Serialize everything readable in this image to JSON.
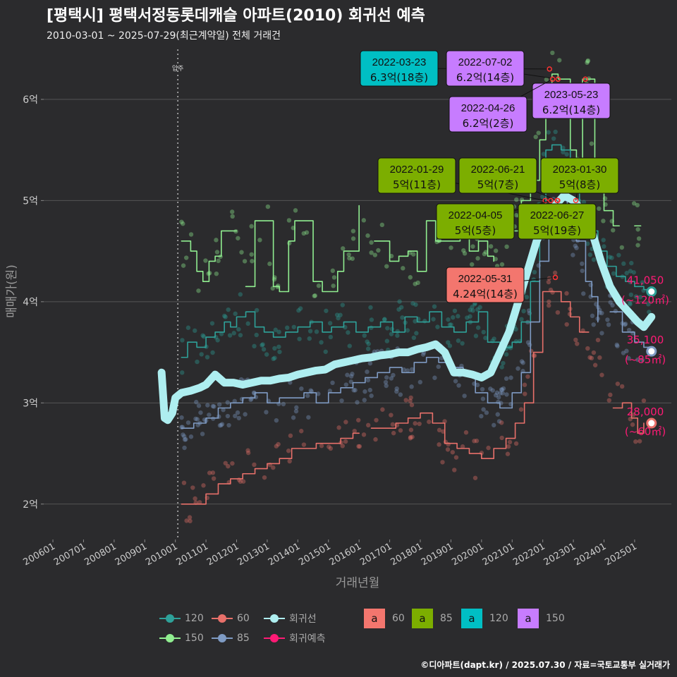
{
  "title": "[평택시] 평택서정동롯데캐슬 아파트(2010) 회귀선 예측",
  "subtitle": "2010-03-01 ~ 2025-07-29(최근계약일) 전체 거래건",
  "credit": "©디아파트(dapt.kr) / 2025.07.30 / 자료=국토교통부 실거래가",
  "chart_data": {
    "type": "line",
    "xlabel": "거래년월",
    "ylabel": "매매가(원)",
    "x_ticks": [
      "200601",
      "200701",
      "200801",
      "200901",
      "201001",
      "201101",
      "201201",
      "201301",
      "201401",
      "201501",
      "201601",
      "201701",
      "201801",
      "201901",
      "202001",
      "202101",
      "202201",
      "202301",
      "202401",
      "202501"
    ],
    "y_ticks": [
      {
        "v": 2,
        "label": "2억"
      },
      {
        "v": 3,
        "label": "3억"
      },
      {
        "v": 4,
        "label": "4억"
      },
      {
        "v": 5,
        "label": "5억"
      },
      {
        "v": 6,
        "label": "6억"
      }
    ],
    "ylim": [
      1.65,
      6.55
    ],
    "xlim": [
      2005.7,
      2026.2
    ],
    "vline": {
      "x": 2010.08,
      "label": "입주"
    },
    "series": [
      {
        "name": "150",
        "color": "#90ee90",
        "width": 1.6,
        "gaps": [
          2012.05,
          2016.2,
          2020.5,
          2024.6
        ],
        "x": [
          2010.2,
          2010.5,
          2010.7,
          2010.9,
          2011.1,
          2011.3,
          2011.5,
          2011.7,
          2011.9,
          2012.0,
          2012.3,
          2012.6,
          2013.0,
          2013.2,
          2013.4,
          2013.7,
          2013.9,
          2014.2,
          2014.5,
          2014.8,
          2015.0,
          2015.3,
          2015.5,
          2015.8,
          2016.0,
          2016.5,
          2016.8,
          2017.0,
          2017.3,
          2017.6,
          2017.9,
          2018.2,
          2018.5,
          2018.8,
          2019.0,
          2019.3,
          2019.6,
          2019.9,
          2020.2,
          2020.4,
          2020.8,
          2021.0,
          2021.3,
          2021.6,
          2021.9,
          2022.1,
          2022.3,
          2022.5,
          2022.7,
          2022.9,
          2023.1,
          2023.3,
          2023.5,
          2023.7,
          2024.0,
          2024.3,
          2024.5,
          2025.0,
          2025.2
        ],
        "y": [
          4.6,
          4.5,
          4.3,
          4.2,
          4.4,
          4.45,
          4.7,
          4.7,
          4.7,
          4.7,
          4.15,
          4.8,
          4.8,
          4.15,
          4.1,
          4.6,
          4.8,
          4.8,
          4.2,
          4.1,
          4.1,
          4.3,
          4.5,
          4.5,
          4.95,
          4.6,
          4.6,
          4.4,
          4.45,
          4.5,
          4.3,
          4.8,
          4.6,
          4.6,
          4.6,
          4.7,
          4.5,
          4.6,
          4.45,
          4.4,
          4.65,
          4.7,
          5.0,
          5.2,
          5.6,
          6.0,
          6.25,
          6.2,
          6.2,
          5.5,
          5.1,
          6.2,
          6.2,
          5.3,
          4.9,
          4.75,
          4.75,
          4.75,
          4.75
        ]
      },
      {
        "name": "120",
        "color": "#2ea199",
        "width": 1.6,
        "gaps": [],
        "x": [
          2010.2,
          2010.4,
          2010.7,
          2011.0,
          2011.3,
          2011.6,
          2011.8,
          2012.0,
          2012.3,
          2012.6,
          2012.9,
          2013.2,
          2013.6,
          2014.0,
          2014.4,
          2014.8,
          2015.1,
          2015.5,
          2015.9,
          2016.3,
          2016.7,
          2017.1,
          2017.5,
          2017.9,
          2018.3,
          2018.7,
          2019.1,
          2019.5,
          2019.9,
          2020.2,
          2020.6,
          2021.0,
          2021.3,
          2021.6,
          2021.9,
          2022.1,
          2022.3,
          2022.6,
          2022.9,
          2023.2,
          2023.5,
          2023.8,
          2024.1,
          2024.4,
          2024.7,
          2025.0,
          2025.3,
          2025.55
        ],
        "y": [
          3.45,
          3.6,
          3.55,
          3.65,
          3.7,
          3.8,
          3.75,
          3.85,
          3.9,
          3.75,
          3.7,
          3.65,
          3.7,
          3.75,
          3.8,
          3.7,
          3.75,
          3.8,
          3.7,
          3.75,
          3.8,
          3.7,
          3.85,
          3.8,
          3.9,
          3.75,
          3.7,
          3.8,
          3.9,
          3.6,
          3.55,
          3.6,
          3.8,
          4.2,
          4.8,
          5.5,
          5.55,
          5.5,
          5.2,
          4.9,
          4.7,
          4.5,
          4.35,
          4.25,
          4.2,
          4.15,
          4.12,
          4.1
        ]
      },
      {
        "name": "85",
        "color": "#7f9bc4",
        "width": 1.6,
        "gaps": [
          2023.9
        ],
        "x": [
          2010.2,
          2010.6,
          2011.0,
          2011.4,
          2011.8,
          2012.2,
          2012.6,
          2013.0,
          2013.4,
          2013.8,
          2014.2,
          2014.6,
          2015.0,
          2015.4,
          2015.8,
          2016.2,
          2016.6,
          2017.0,
          2017.4,
          2017.8,
          2018.2,
          2018.6,
          2019.0,
          2019.4,
          2019.8,
          2020.2,
          2020.6,
          2021.0,
          2021.3,
          2021.6,
          2021.9,
          2022.2,
          2022.5,
          2022.8,
          2023.1,
          2023.4,
          2023.6,
          2023.8,
          2024.2,
          2024.6,
          2025.0,
          2025.3,
          2025.55
        ],
        "y": [
          2.75,
          2.8,
          2.85,
          2.95,
          3.0,
          3.05,
          3.1,
          3.0,
          3.05,
          3.05,
          3.1,
          3.0,
          3.1,
          3.15,
          3.2,
          3.25,
          3.3,
          3.35,
          3.3,
          3.4,
          3.45,
          3.4,
          3.35,
          3.3,
          3.1,
          3.0,
          2.95,
          3.1,
          3.3,
          3.8,
          4.4,
          4.9,
          5.0,
          4.8,
          4.6,
          4.2,
          4.05,
          3.8,
          3.9,
          3.7,
          3.6,
          3.55,
          3.51
        ]
      },
      {
        "name": "60",
        "color": "#e8706a",
        "width": 1.6,
        "gaps": [
          2016.1,
          2023.7
        ],
        "x": [
          2010.2,
          2010.6,
          2011.0,
          2011.4,
          2011.8,
          2012.2,
          2012.6,
          2013.0,
          2013.4,
          2013.8,
          2014.2,
          2014.6,
          2015.0,
          2015.4,
          2015.8,
          2016.0,
          2016.4,
          2016.8,
          2017.2,
          2017.6,
          2018.0,
          2018.4,
          2018.8,
          2019.2,
          2019.6,
          2020.0,
          2020.4,
          2020.8,
          2021.1,
          2021.4,
          2021.7,
          2022.0,
          2022.3,
          2022.6,
          2022.9,
          2023.2,
          2023.5,
          2024.3,
          2024.6,
          2024.9,
          2025.1,
          2025.3
        ],
        "y": [
          2.0,
          2.0,
          2.1,
          2.2,
          2.25,
          2.3,
          2.35,
          2.4,
          2.45,
          2.55,
          2.55,
          2.6,
          2.6,
          2.65,
          2.7,
          2.7,
          2.75,
          2.75,
          2.8,
          2.85,
          2.9,
          2.8,
          2.6,
          2.55,
          2.5,
          2.45,
          2.55,
          2.65,
          2.8,
          3.0,
          3.5,
          4.1,
          4.1,
          4.0,
          3.85,
          3.7,
          3.7,
          2.95,
          3.0,
          2.85,
          2.7,
          2.8
        ]
      },
      {
        "name": "회귀선",
        "color": "#aeeef0",
        "width": 11,
        "gaps": [],
        "x": [
          2009.55,
          2009.65,
          2009.75,
          2009.9,
          2010.0,
          2010.2,
          2010.5,
          2010.8,
          2011.0,
          2011.3,
          2011.6,
          2011.9,
          2012.2,
          2012.5,
          2012.8,
          2013.1,
          2013.4,
          2013.7,
          2014.0,
          2014.3,
          2014.6,
          2014.9,
          2015.2,
          2015.5,
          2015.8,
          2016.1,
          2016.4,
          2016.7,
          2017.0,
          2017.3,
          2017.6,
          2017.9,
          2018.2,
          2018.5,
          2018.8,
          2019.1,
          2019.4,
          2019.7,
          2020.0,
          2020.3,
          2020.6,
          2020.9,
          2021.2,
          2021.5,
          2021.8,
          2022.1,
          2022.4,
          2022.7,
          2023.0,
          2023.3,
          2023.6,
          2023.9,
          2024.2,
          2024.5,
          2024.8,
          2025.1,
          2025.3,
          2025.55
        ],
        "y": [
          3.3,
          2.85,
          2.83,
          2.9,
          3.05,
          3.1,
          3.12,
          3.15,
          3.18,
          3.28,
          3.2,
          3.2,
          3.18,
          3.2,
          3.22,
          3.22,
          3.24,
          3.25,
          3.28,
          3.3,
          3.32,
          3.33,
          3.38,
          3.4,
          3.42,
          3.44,
          3.45,
          3.47,
          3.48,
          3.5,
          3.5,
          3.53,
          3.55,
          3.58,
          3.5,
          3.3,
          3.3,
          3.28,
          3.25,
          3.3,
          3.5,
          3.7,
          4.0,
          4.3,
          4.6,
          4.8,
          4.95,
          5.05,
          5.0,
          4.9,
          4.7,
          4.4,
          4.15,
          4.0,
          3.9,
          3.8,
          3.75,
          3.85
        ]
      }
    ],
    "dots": {
      "seed": 7,
      "per_series": 130
    },
    "end_points": [
      {
        "series": "120",
        "x": 2025.55,
        "y": 4.1,
        "value": "41,050",
        "size": "(~120㎡)"
      },
      {
        "series": "85",
        "x": 2025.55,
        "y": 3.51,
        "value": "35,100",
        "size": "(~85㎡)"
      },
      {
        "series": "60",
        "x": 2025.55,
        "y": 2.8,
        "value": "28,000",
        "size": "(~60㎡)"
      }
    ],
    "annotations": [
      {
        "date": "2022-03-23",
        "price": "6.3억(18층)",
        "group": "120",
        "x": 2022.22,
        "y": 6.3,
        "lx": 566,
        "ly": 97
      },
      {
        "date": "2022-07-02",
        "price": "6.2억(14층)",
        "group": "150",
        "x": 2022.5,
        "y": 6.2,
        "lx": 688,
        "ly": 97
      },
      {
        "date": "2023-05-23",
        "price": "6.2억(14층)",
        "group": "150",
        "x": 2023.39,
        "y": 6.2,
        "lx": 810,
        "ly": 143
      },
      {
        "date": "2022-04-26",
        "price": "6.2억(2층)",
        "group": "150",
        "x": 2022.32,
        "y": 6.2,
        "lx": 692,
        "ly": 162
      },
      {
        "date": "2022-01-29",
        "price": "5억(11층)",
        "group": "85",
        "x": 2022.08,
        "y": 5.0,
        "lx": 591,
        "ly": 249
      },
      {
        "date": "2022-06-21",
        "price": "5억(7층)",
        "group": "85",
        "x": 2022.47,
        "y": 5.0,
        "lx": 706,
        "ly": 249
      },
      {
        "date": "2023-01-30",
        "price": "5억(8층)",
        "group": "85",
        "x": 2023.08,
        "y": 5.0,
        "lx": 822,
        "ly": 249
      },
      {
        "date": "2022-04-05",
        "price": "5억(5층)",
        "group": "85",
        "x": 2022.26,
        "y": 5.0,
        "lx": 674,
        "ly": 314
      },
      {
        "date": "2022-06-27",
        "price": "5억(19층)",
        "group": "85",
        "x": 2022.49,
        "y": 5.0,
        "lx": 790,
        "ly": 314
      },
      {
        "date": "2022-05-31",
        "price": "4.24억(14층)",
        "group": "60",
        "x": 2022.41,
        "y": 4.24,
        "lx": 688,
        "ly": 404
      }
    ],
    "box_colors": {
      "60": "#f3766e",
      "85": "#7cae00",
      "120": "#00bfc4",
      "150": "#c77cff"
    },
    "legend": {
      "lines": [
        {
          "name": "120",
          "color": "#2ea199"
        },
        {
          "name": "60",
          "color": "#e8706a"
        },
        {
          "name": "회귀선",
          "color": "#aeeef0"
        },
        {
          "name": "150",
          "color": "#90ee90"
        },
        {
          "name": "85",
          "color": "#7f9bc4"
        },
        {
          "name": "회귀예측",
          "color": "#ff1a75"
        }
      ],
      "boxes": [
        {
          "letter": "a",
          "name": "60",
          "color": "#f3766e"
        },
        {
          "letter": "a",
          "name": "85",
          "color": "#7cae00"
        },
        {
          "letter": "a",
          "name": "120",
          "color": "#00bfc4"
        },
        {
          "letter": "a",
          "name": "150",
          "color": "#c77cff"
        }
      ]
    }
  }
}
